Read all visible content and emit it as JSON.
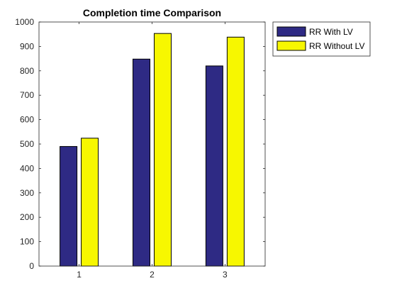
{
  "chart_data": {
    "type": "bar",
    "title": "Completion time Comparison",
    "xlabel": "",
    "ylabel": "",
    "categories": [
      "1",
      "2",
      "3"
    ],
    "ylim": [
      0,
      1000
    ],
    "yticks": [
      0,
      100,
      200,
      300,
      400,
      500,
      600,
      700,
      800,
      900,
      1000
    ],
    "grid": false,
    "legend_position": "outside-top-right",
    "series": [
      {
        "name": "RR With LV",
        "color": "#2e2a84",
        "values": [
          490,
          848,
          820
        ]
      },
      {
        "name": "RR Without LV",
        "color": "#f7f700",
        "values": [
          524,
          953,
          938
        ]
      }
    ]
  }
}
